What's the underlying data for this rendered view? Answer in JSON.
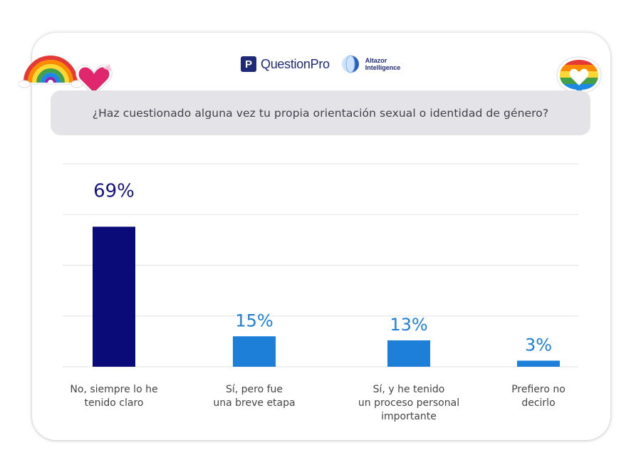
{
  "logos": {
    "questionpro": "QuestionPro",
    "altazor_line1": "Altazor",
    "altazor_line2": "Intelligence"
  },
  "question": "¿Haz cuestionado alguna vez tu propia orientación sexual o identidad de género?",
  "colors": {
    "bar_primary": "#0a0a78",
    "bar_secondary": "#1e7fd8",
    "label_primary": "#141482",
    "label_secondary": "#1e7fd8",
    "grid": "#e2e2e2",
    "question_bg": "#e4e4e8"
  },
  "decorations": [
    "rainbow-sticker-icon",
    "heart-sticker-icon",
    "rainbow-heart-bubble-icon"
  ],
  "chart_data": {
    "type": "bar",
    "categories": [
      [
        "No, siempre lo he",
        "tenido claro"
      ],
      [
        "Sí, pero fue",
        "una breve etapa"
      ],
      [
        "Sí, y he tenido",
        "un proceso personal",
        "importante"
      ],
      [
        "Prefiero no",
        "decirlo"
      ]
    ],
    "values": [
      69,
      15,
      13,
      3
    ],
    "value_labels": [
      "69%",
      "15%",
      "13%",
      "3%"
    ],
    "ylim": [
      0,
      100
    ],
    "grid": true,
    "title": "",
    "xlabel": "",
    "ylabel": ""
  }
}
